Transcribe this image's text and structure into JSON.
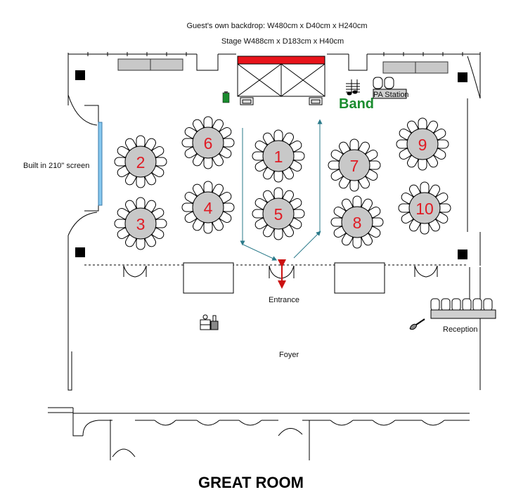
{
  "labels": {
    "backdrop": "Guest's own backdrop: W480cm x D40cm x H240cm",
    "stage": "Stage W488cm x D183cm x H40cm",
    "band": "Band",
    "pa_station": "PA Station",
    "screen": "Built in 210\" screen",
    "entrance": "Entrance",
    "reception": "Reception",
    "foyer": "Foyer",
    "title": "GREAT ROOM"
  },
  "tables": [
    "1",
    "2",
    "3",
    "4",
    "5",
    "6",
    "7",
    "8",
    "9",
    "10"
  ],
  "colors": {
    "table_fill": "#c8c8c8",
    "table_number": "#e01b24",
    "backdrop": "#e8141b",
    "screen": "#87c8ef",
    "aisle_arrow": "#2a7a8a",
    "entrance_arrow": "#cc1111",
    "band_text": "#1a8c2e"
  },
  "icons": [
    "music-note-icon",
    "bar-station-icon",
    "guitar-icon",
    "speaker-icon"
  ]
}
